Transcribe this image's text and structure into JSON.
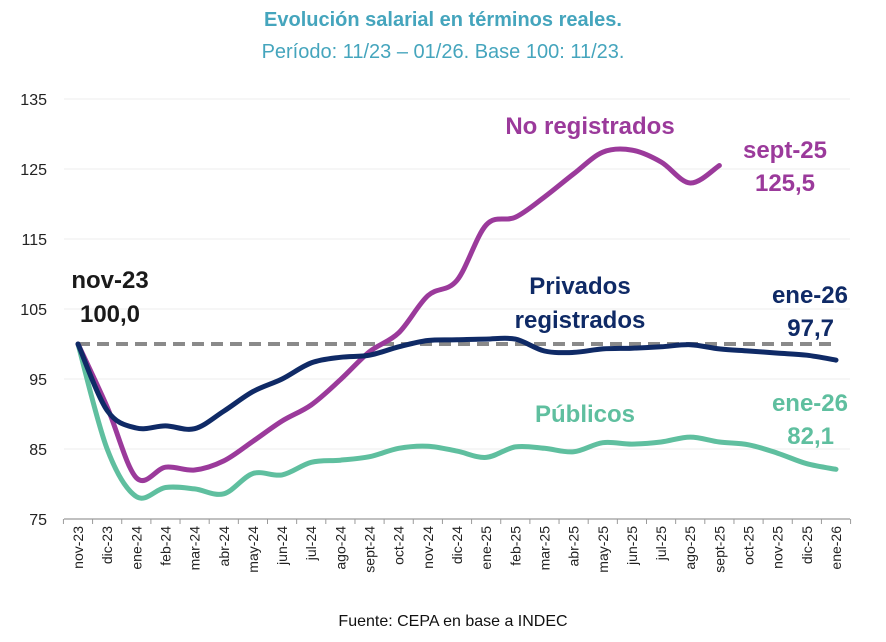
{
  "chart_data": {
    "type": "line",
    "title": "Evolución salarial en términos reales.",
    "subtitle": "Período: 11/23 – 01/26. Base 100: 11/23.",
    "xlabel": "",
    "ylabel": "",
    "ylim": [
      75,
      135
    ],
    "yticks": [
      75,
      85,
      95,
      105,
      115,
      125,
      135
    ],
    "grid": true,
    "categories": [
      "nov-23",
      "dic-23",
      "ene-24",
      "feb-24",
      "mar-24",
      "abr-24",
      "may-24",
      "jun-24",
      "jul-24",
      "ago-24",
      "sept-24",
      "oct-24",
      "nov-24",
      "dic-24",
      "ene-25",
      "feb-25",
      "mar-25",
      "abr-25",
      "may-25",
      "jun-25",
      "jul-25",
      "ago-25",
      "sept-25",
      "oct-25",
      "nov-25",
      "dic-25",
      "ene-26"
    ],
    "baseline": 100,
    "series": [
      {
        "name": "No registrados",
        "color": "#9b3a9b",
        "values": [
          100,
          91,
          80.9,
          82.4,
          82.0,
          83.3,
          86.1,
          89.0,
          91.3,
          94.9,
          98.9,
          101.6,
          106.9,
          109.1,
          117.0,
          118.1,
          121.0,
          124.3,
          127.4,
          127.7,
          126.0,
          123.0,
          125.5,
          null,
          null,
          null,
          null
        ]
      },
      {
        "name": "Privados registrados",
        "color": "#0f2a66",
        "values": [
          100,
          90.5,
          88.0,
          88.3,
          87.9,
          90.4,
          93.2,
          95.0,
          97.3,
          98.1,
          98.4,
          99.6,
          100.5,
          100.6,
          100.7,
          100.7,
          99.0,
          98.8,
          99.3,
          99.4,
          99.6,
          99.9,
          99.3,
          99.0,
          98.7,
          98.4,
          97.7
        ]
      },
      {
        "name": "Públicos",
        "color": "#5fbf9f",
        "values": [
          100,
          85.0,
          78.2,
          79.5,
          79.3,
          78.6,
          81.5,
          81.3,
          83.1,
          83.4,
          83.9,
          85.1,
          85.4,
          84.7,
          83.8,
          85.3,
          85.1,
          84.6,
          85.9,
          85.7,
          86.0,
          86.7,
          86.0,
          85.6,
          84.4,
          82.9,
          82.1
        ]
      }
    ],
    "annotations": [
      {
        "id": "start",
        "text1": "nov-23",
        "text2": "100,0",
        "color": "#1a1a1a"
      },
      {
        "id": "noreg_name",
        "text1": "No registrados",
        "color": "#9b3a9b"
      },
      {
        "id": "noreg_end",
        "text1": "sept-25",
        "text2": "125,5",
        "color": "#9b3a9b"
      },
      {
        "id": "priv_name",
        "text1": "Privados",
        "text2": "registrados",
        "color": "#0f2a66"
      },
      {
        "id": "priv_end",
        "text1": "ene-26",
        "text2": "97,7",
        "color": "#0f2a66"
      },
      {
        "id": "pub_name",
        "text1": "Públicos",
        "color": "#5fbf9f"
      },
      {
        "id": "pub_end",
        "text1": "ene-26",
        "text2": "82,1",
        "color": "#5fbf9f"
      }
    ],
    "source": "Fuente: CEPA en base a INDEC"
  }
}
